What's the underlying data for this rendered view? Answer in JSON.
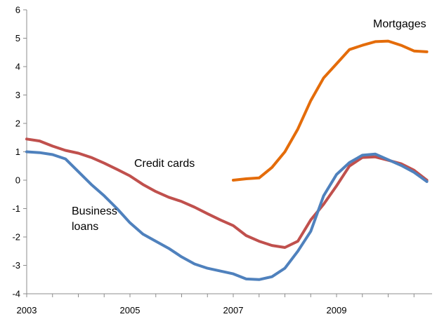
{
  "chart_data": {
    "type": "line",
    "title": "",
    "xlabel": "",
    "ylabel": "",
    "xlim": [
      2003,
      2010.85
    ],
    "ylim": [
      -4,
      6
    ],
    "yticks": [
      6,
      5,
      4,
      3,
      2,
      1,
      0,
      -1,
      -2,
      -3,
      -4
    ],
    "xticks": [
      2003,
      2005,
      2007,
      2009
    ],
    "grid": false,
    "legend": "none",
    "series": [
      {
        "name": "Mortgages",
        "color": "#E46C0A",
        "label_lines": [
          "Mortgages"
        ],
        "x": [
          2007.0,
          2007.25,
          2007.5,
          2007.75,
          2008.0,
          2008.25,
          2008.5,
          2008.75,
          2009.0,
          2009.25,
          2009.5,
          2009.75,
          2010.0,
          2010.25,
          2010.5,
          2010.75
        ],
        "y": [
          0.0,
          0.05,
          0.08,
          0.45,
          1.0,
          1.8,
          2.8,
          3.6,
          4.1,
          4.6,
          4.75,
          4.88,
          4.9,
          4.75,
          4.55,
          4.52
        ]
      },
      {
        "name": "Credit cards",
        "color": "#C0504D",
        "label_lines": [
          "Credit cards"
        ],
        "x": [
          2003.0,
          2003.25,
          2003.5,
          2003.75,
          2004.0,
          2004.25,
          2004.5,
          2004.75,
          2005.0,
          2005.25,
          2005.5,
          2005.75,
          2006.0,
          2006.25,
          2006.5,
          2006.75,
          2007.0,
          2007.25,
          2007.5,
          2007.75,
          2008.0,
          2008.25,
          2008.5,
          2008.75,
          2009.0,
          2009.25,
          2009.5,
          2009.75,
          2010.0,
          2010.25,
          2010.5,
          2010.75
        ],
        "y": [
          1.45,
          1.38,
          1.2,
          1.05,
          0.95,
          0.8,
          0.6,
          0.38,
          0.15,
          -0.15,
          -0.4,
          -0.6,
          -0.75,
          -0.95,
          -1.18,
          -1.4,
          -1.6,
          -1.95,
          -2.15,
          -2.3,
          -2.37,
          -2.15,
          -1.4,
          -0.85,
          -0.2,
          0.5,
          0.8,
          0.82,
          0.7,
          0.58,
          0.35,
          0.0
        ]
      },
      {
        "name": "Business loans",
        "color": "#4F81BD",
        "label_lines": [
          "Business",
          "loans"
        ],
        "x": [
          2003.0,
          2003.25,
          2003.5,
          2003.75,
          2004.0,
          2004.25,
          2004.5,
          2004.75,
          2005.0,
          2005.25,
          2005.5,
          2005.75,
          2006.0,
          2006.25,
          2006.5,
          2006.75,
          2007.0,
          2007.25,
          2007.5,
          2007.75,
          2008.0,
          2008.25,
          2008.5,
          2008.75,
          2009.0,
          2009.25,
          2009.5,
          2009.75,
          2010.0,
          2010.25,
          2010.5,
          2010.75
        ],
        "y": [
          1.0,
          0.97,
          0.9,
          0.75,
          0.3,
          -0.15,
          -0.55,
          -1.0,
          -1.5,
          -1.9,
          -2.15,
          -2.4,
          -2.7,
          -2.95,
          -3.1,
          -3.2,
          -3.3,
          -3.48,
          -3.5,
          -3.4,
          -3.1,
          -2.5,
          -1.8,
          -0.55,
          0.2,
          0.62,
          0.88,
          0.92,
          0.72,
          0.52,
          0.28,
          -0.05
        ]
      }
    ]
  }
}
